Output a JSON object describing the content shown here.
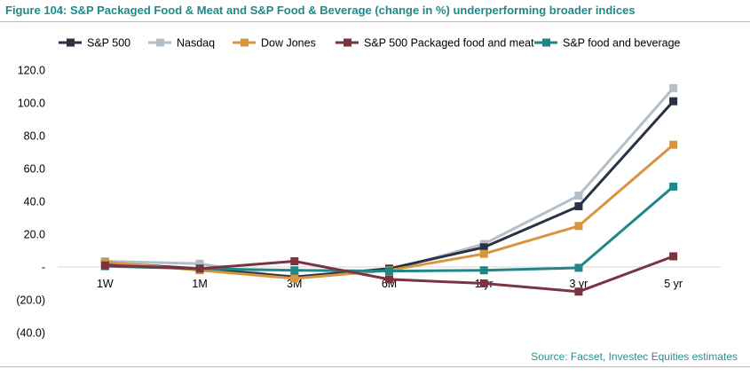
{
  "figure": {
    "title": "Figure 104:  S&P Packaged Food & Meat and S&P Food & Beverage (change in %) underperforming broader indices",
    "source": "Source: Facset, Investec Equities estimates"
  },
  "chart_data": {
    "type": "line",
    "categories": [
      "1W",
      "1M",
      "3M",
      "6M",
      "1 yr",
      "3 yr",
      "5 yr"
    ],
    "ylim": [
      -40,
      120
    ],
    "yticks": [
      120,
      100,
      80,
      60,
      40,
      20,
      0,
      -20,
      -40
    ],
    "ytick_labels": [
      "120.0",
      "100.0",
      "80.0",
      "60.0",
      "40.0",
      "20.0",
      "-",
      "(20.0)",
      "(40.0)"
    ],
    "legend_position": "top",
    "grid": false,
    "series": [
      {
        "name": "S&P 500",
        "color": "#2b3144",
        "values": [
          2.5,
          -1.0,
          -6.0,
          -1.0,
          12.0,
          37.0,
          101.0
        ]
      },
      {
        "name": "Nasdaq",
        "color": "#b3bec6",
        "values": [
          3.5,
          2.0,
          -7.0,
          -2.0,
          14.0,
          43.5,
          109.0
        ]
      },
      {
        "name": "Dow Jones",
        "color": "#d8953f",
        "values": [
          3.0,
          -2.0,
          -7.0,
          -2.0,
          8.0,
          25.0,
          74.5
        ]
      },
      {
        "name": "S&P 500 Packaged food and meat",
        "color": "#7a3440",
        "values": [
          1.0,
          -1.0,
          3.5,
          -7.5,
          -10.0,
          -15.0,
          6.5
        ]
      },
      {
        "name": "S&P food and beverage",
        "color": "#1f8787",
        "values": [
          0.5,
          -1.0,
          -2.0,
          -2.5,
          -2.0,
          -0.5,
          49.0
        ]
      }
    ]
  }
}
